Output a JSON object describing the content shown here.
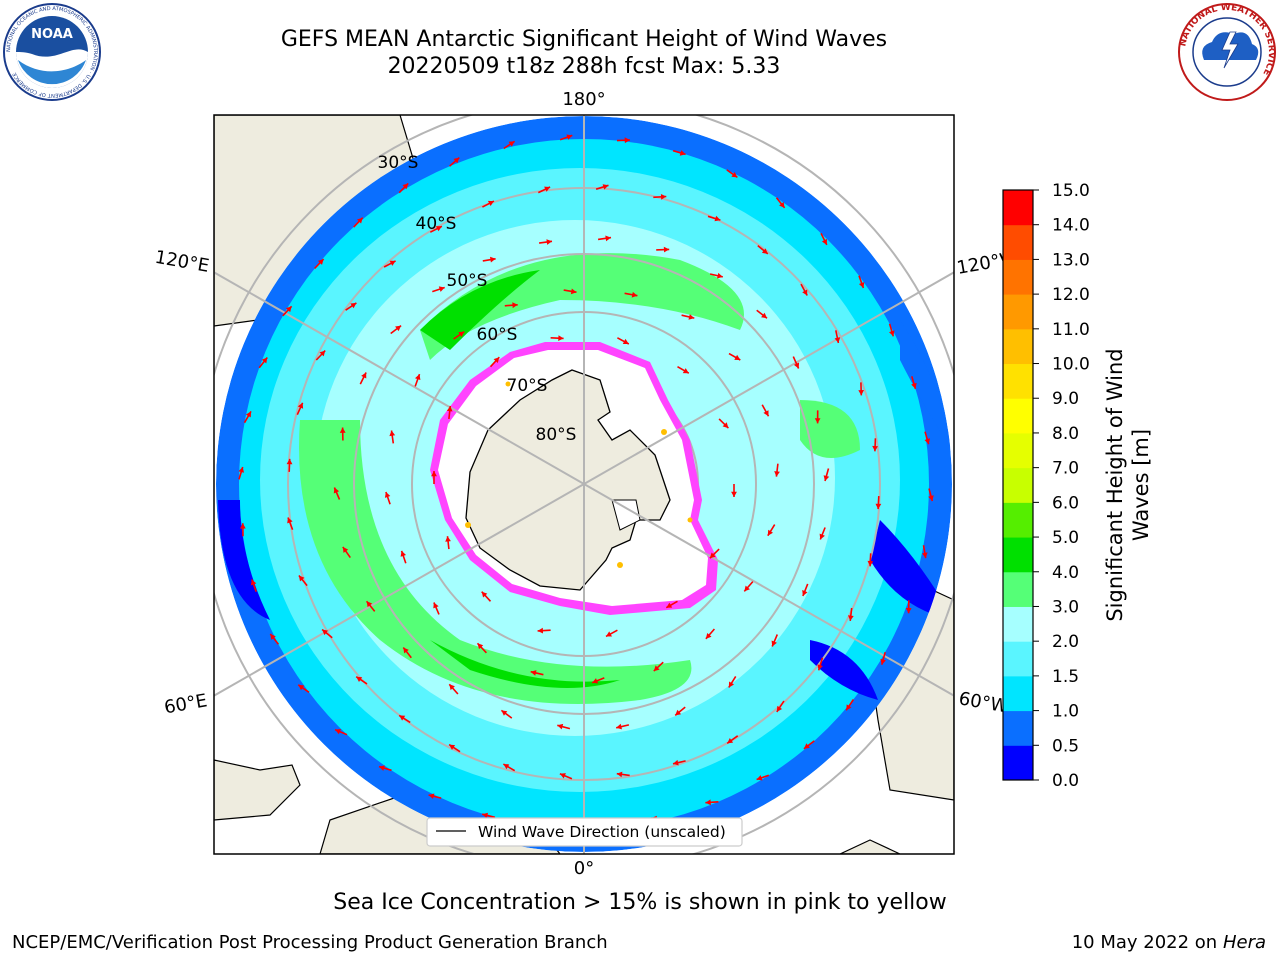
{
  "header": {
    "title_line1": "GEFS MEAN Antarctic Significant Height of Wind Waves",
    "title_line2": "20220509 t18z 288h fcst   Max: 5.33"
  },
  "logos": {
    "noaa_text": "NOAA",
    "noaa_ring_text": "NATIONAL OCEANIC AND ATMOSPHERIC ADMINISTRATION · U.S. DEPARTMENT OF COMMERCE",
    "nws_ring_text": "NATIONAL WEATHER SERVICE"
  },
  "map": {
    "projection": "south-polar-stereographic",
    "longitude_labels": {
      "top": "180°",
      "bottom": "0°",
      "left_upper": "120°E",
      "left_lower": "60°E",
      "right_upper": "120°W",
      "right_lower": "60°W"
    },
    "latitude_labels": [
      "30°S",
      "40°S",
      "50°S",
      "60°S",
      "70°S",
      "80°S"
    ],
    "legend_label": "Wind Wave Direction (unscaled)",
    "colors": {
      "land": "#eeecdf",
      "ice": "#ffffff",
      "ice_edge": "#ff33ff",
      "arrow": "#ff0000",
      "gridline": "#b5b5b5"
    }
  },
  "colorbar": {
    "label": "Significant Height of Wind Waves [m]",
    "ticks": [
      "0.0",
      "0.5",
      "1.0",
      "1.5",
      "2.0",
      "3.0",
      "4.0",
      "5.0",
      "6.0",
      "7.0",
      "8.0",
      "9.0",
      "10.0",
      "11.0",
      "12.0",
      "13.0",
      "14.0",
      "15.0"
    ],
    "colors": [
      "#0000ff",
      "#0a6fff",
      "#00e5ff",
      "#5af5ff",
      "#a6ffff",
      "#55ff77",
      "#00e000",
      "#55ee00",
      "#c8ff00",
      "#e5ff00",
      "#ffff00",
      "#ffe100",
      "#ffbf00",
      "#ff9900",
      "#ff7300",
      "#ff4c00",
      "#ff0000"
    ]
  },
  "notes": {
    "sea_ice": "Sea Ice Concentration > 15% is shown in pink to yellow"
  },
  "footer": {
    "left": "NCEP/EMC/Verification Post Processing Product Generation Branch",
    "right_date": "10 May 2022 on",
    "right_host": "Hera"
  }
}
